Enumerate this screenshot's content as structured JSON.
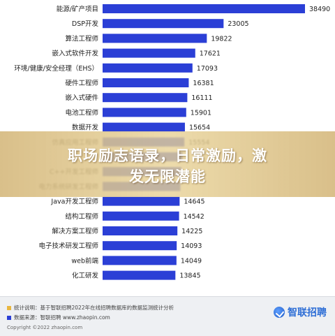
{
  "chart_data": {
    "type": "bar",
    "orientation": "horizontal",
    "categories": [
      "能源/矿产项目",
      "DSP开发",
      "算法工程师",
      "嵌入式软件开发",
      "环境/健康/安全经理（EHS）",
      "硬件工程师",
      "嵌入式硬件",
      "电池工程师",
      "数据开发",
      "仿真应用工程师",
      "",
      "C++开发工程师",
      "电力系统研发工程师",
      "Java开发工程师",
      "结构工程师",
      "解决方案工程师",
      "电子技术研发工程师",
      "web前端",
      "化工研发"
    ],
    "values": [
      38490,
      23005,
      19822,
      17621,
      17093,
      16381,
      16111,
      15901,
      15654,
      15554,
      15200,
      15000,
      14800,
      14645,
      14542,
      14225,
      14093,
      14049,
      13845
    ],
    "value_labels": [
      "38490",
      "23005",
      "19822",
      "17621",
      "17093",
      "16381",
      "16111",
      "15901",
      "15654",
      "15554",
      "",
      "",
      "",
      "14645",
      "14542",
      "14225",
      "14093",
      "14049",
      "13845"
    ],
    "bar_color": "#2b3fd6",
    "xlim": [
      0,
      38490
    ],
    "grid": false,
    "legend": "none"
  },
  "overlay": {
    "line1": "职场励志语录，日常激励，激",
    "line2": "发无限潜能"
  },
  "footer": {
    "note1": "统计说明：基于智联招聘2022年在线招聘数据库的数据监测统计分析",
    "note2": "数据来源：智联招聘 www.zhaopin.com",
    "copyright": "Copyright ©2022 zhaopin.com",
    "brand": "智联招聘",
    "dot1_color": "#e8b640",
    "dot2_color": "#2b3fd6"
  }
}
